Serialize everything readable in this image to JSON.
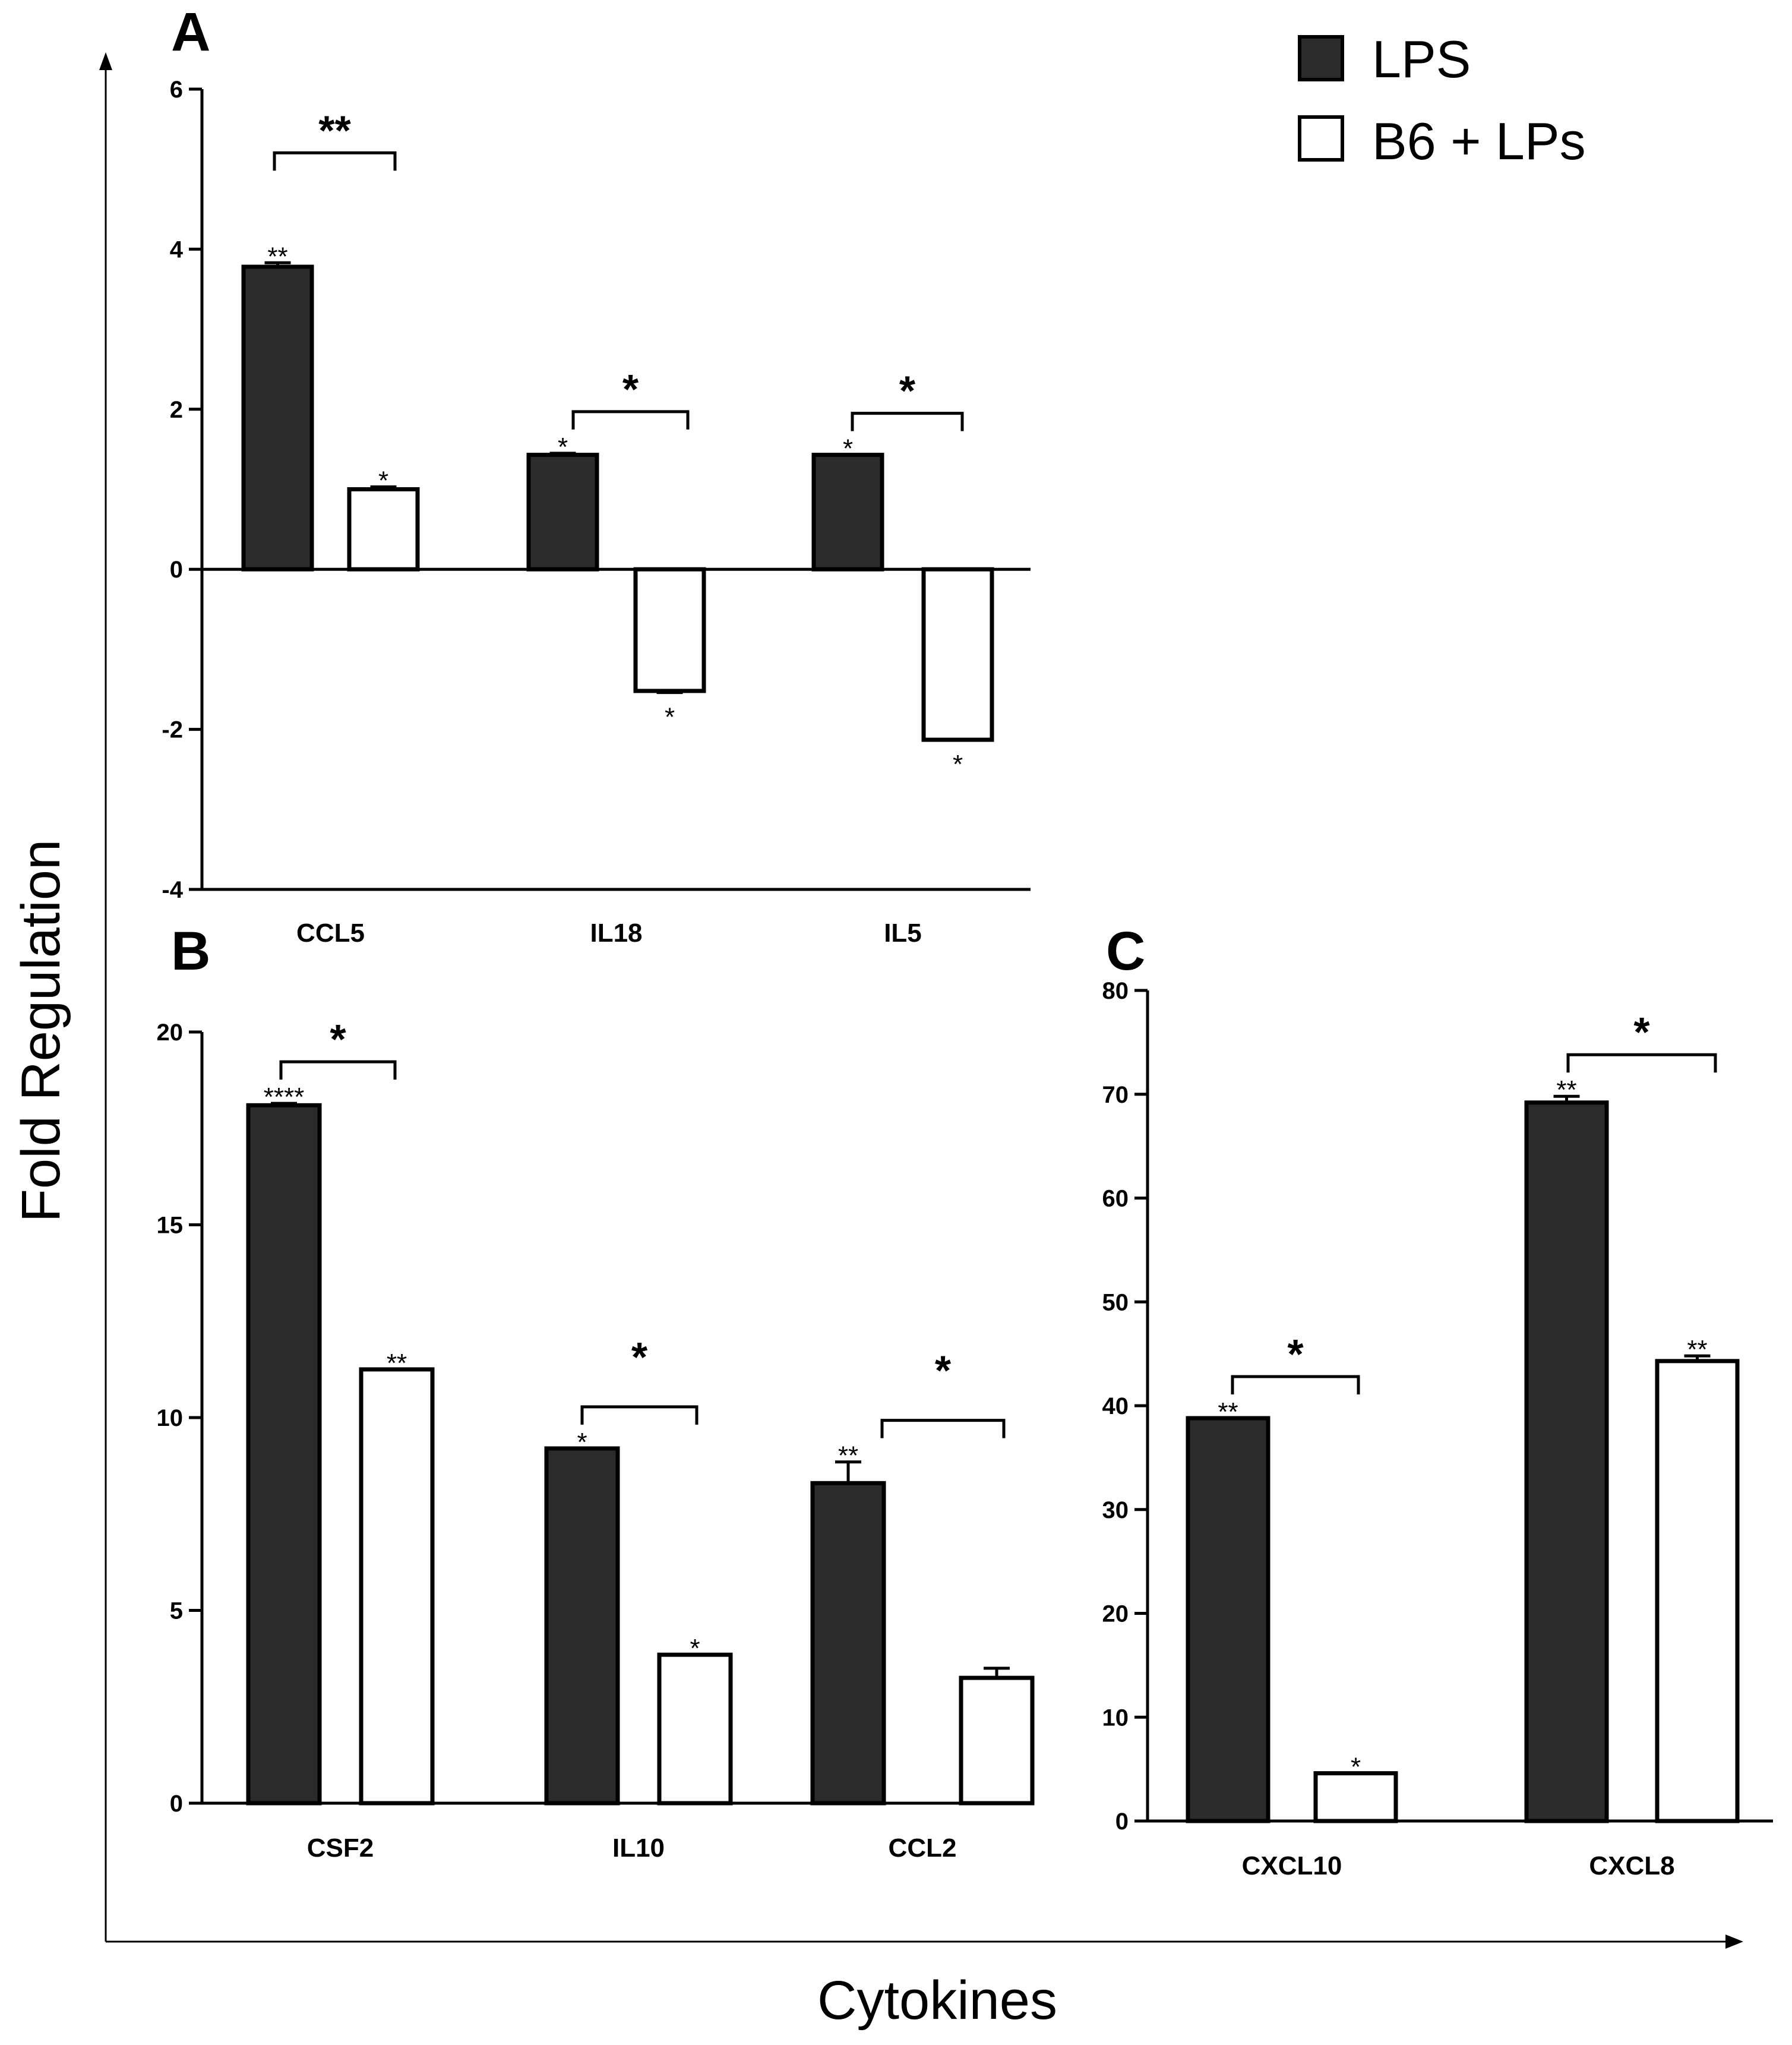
{
  "legend": {
    "entries": [
      {
        "label": "LPS",
        "color": "#2b2b2b"
      },
      {
        "label": "B6 + LPs",
        "color": "#ffffff"
      }
    ]
  },
  "axes": {
    "ylabel": "Fold Regulation",
    "xlabel": "Cytokines"
  },
  "colors": {
    "lps": "#2b2b2b",
    "b6": "#ffffff",
    "stroke": "#000000"
  },
  "chart_data": [
    {
      "panel": "A",
      "type": "bar",
      "categories": [
        "CCL5",
        "IL18",
        "IL5"
      ],
      "series": [
        {
          "name": "LPS",
          "values": [
            3.78,
            1.43,
            1.43
          ],
          "errors": [
            0.05,
            0.02,
            0.0
          ],
          "sig": [
            "**",
            "*",
            "*"
          ]
        },
        {
          "name": "B6 + LPs",
          "values": [
            1.0,
            -1.52,
            -2.13
          ],
          "errors": [
            0.03,
            0.02,
            0.0
          ],
          "sig": [
            "*",
            "*",
            "*"
          ]
        }
      ],
      "comparisons": [
        "**",
        "*",
        "*"
      ],
      "ylim": [
        -4,
        6
      ],
      "yticks": [
        -4,
        -2,
        0,
        2,
        4,
        6
      ]
    },
    {
      "panel": "B",
      "type": "bar",
      "categories": [
        "CSF2",
        "IL10",
        "CCL2"
      ],
      "series": [
        {
          "name": "LPS",
          "values": [
            18.1,
            9.2,
            8.3
          ],
          "errors": [
            0.05,
            0.0,
            0.55
          ],
          "sig": [
            "****",
            "*",
            "**"
          ]
        },
        {
          "name": "B6 + LPs",
          "values": [
            11.25,
            3.85,
            3.25
          ],
          "errors": [
            0.0,
            0.0,
            0.25
          ],
          "sig": [
            "**",
            "*",
            ""
          ]
        }
      ],
      "comparisons": [
        "*",
        "*",
        "*"
      ],
      "ylim": [
        0,
        20
      ],
      "yticks": [
        0,
        5,
        10,
        15,
        20
      ]
    },
    {
      "panel": "C",
      "type": "bar",
      "categories": [
        "CXCL10",
        "CXCL8"
      ],
      "series": [
        {
          "name": "LPS",
          "values": [
            38.8,
            69.2
          ],
          "errors": [
            0.0,
            0.6
          ],
          "sig": [
            "**",
            "**"
          ]
        },
        {
          "name": "B6 + LPs",
          "values": [
            4.6,
            44.3
          ],
          "errors": [
            0.0,
            0.5
          ],
          "sig": [
            "*",
            "**"
          ]
        }
      ],
      "comparisons": [
        "*",
        "*"
      ],
      "ylim": [
        0,
        80
      ],
      "yticks": [
        0,
        10,
        20,
        30,
        40,
        50,
        60,
        70,
        80
      ]
    }
  ]
}
